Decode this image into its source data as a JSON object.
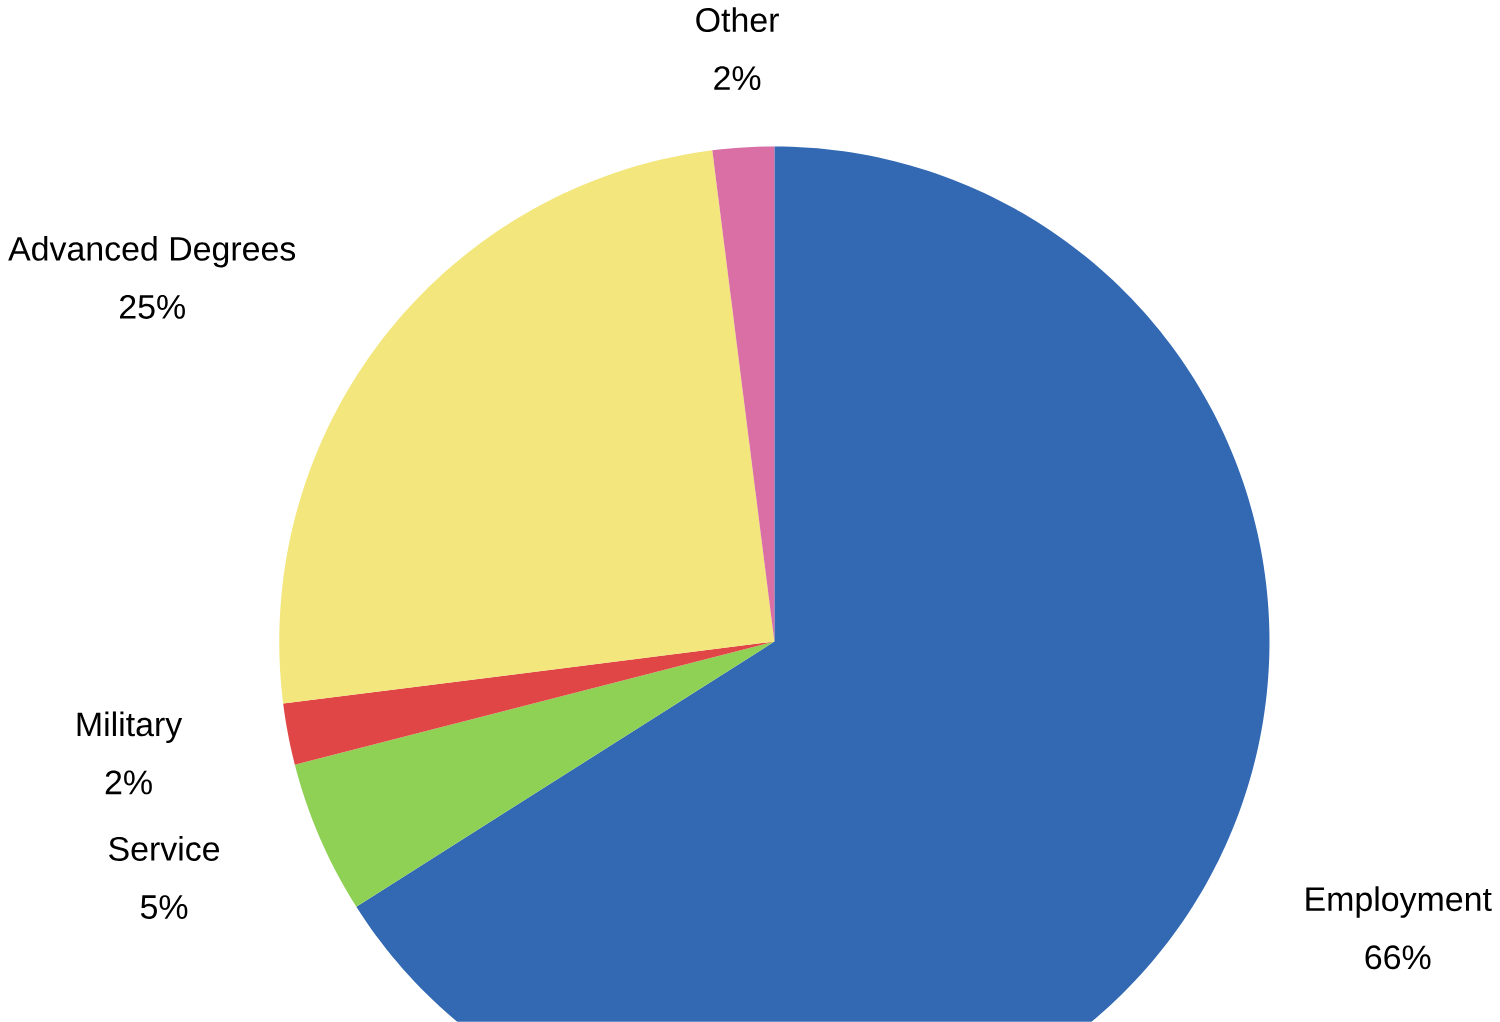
{
  "chart_data": {
    "type": "pie",
    "categories": [
      "Employment",
      "Service",
      "Military",
      "Advanced Degrees",
      "Other"
    ],
    "values": [
      66,
      5,
      2,
      25,
      2
    ],
    "value_labels": [
      "66%",
      "5%",
      "2%",
      "25%",
      "2%"
    ],
    "colors": [
      "#3369b2",
      "#8fd155",
      "#e04646",
      "#f2e67c",
      "#d96fa5"
    ]
  }
}
